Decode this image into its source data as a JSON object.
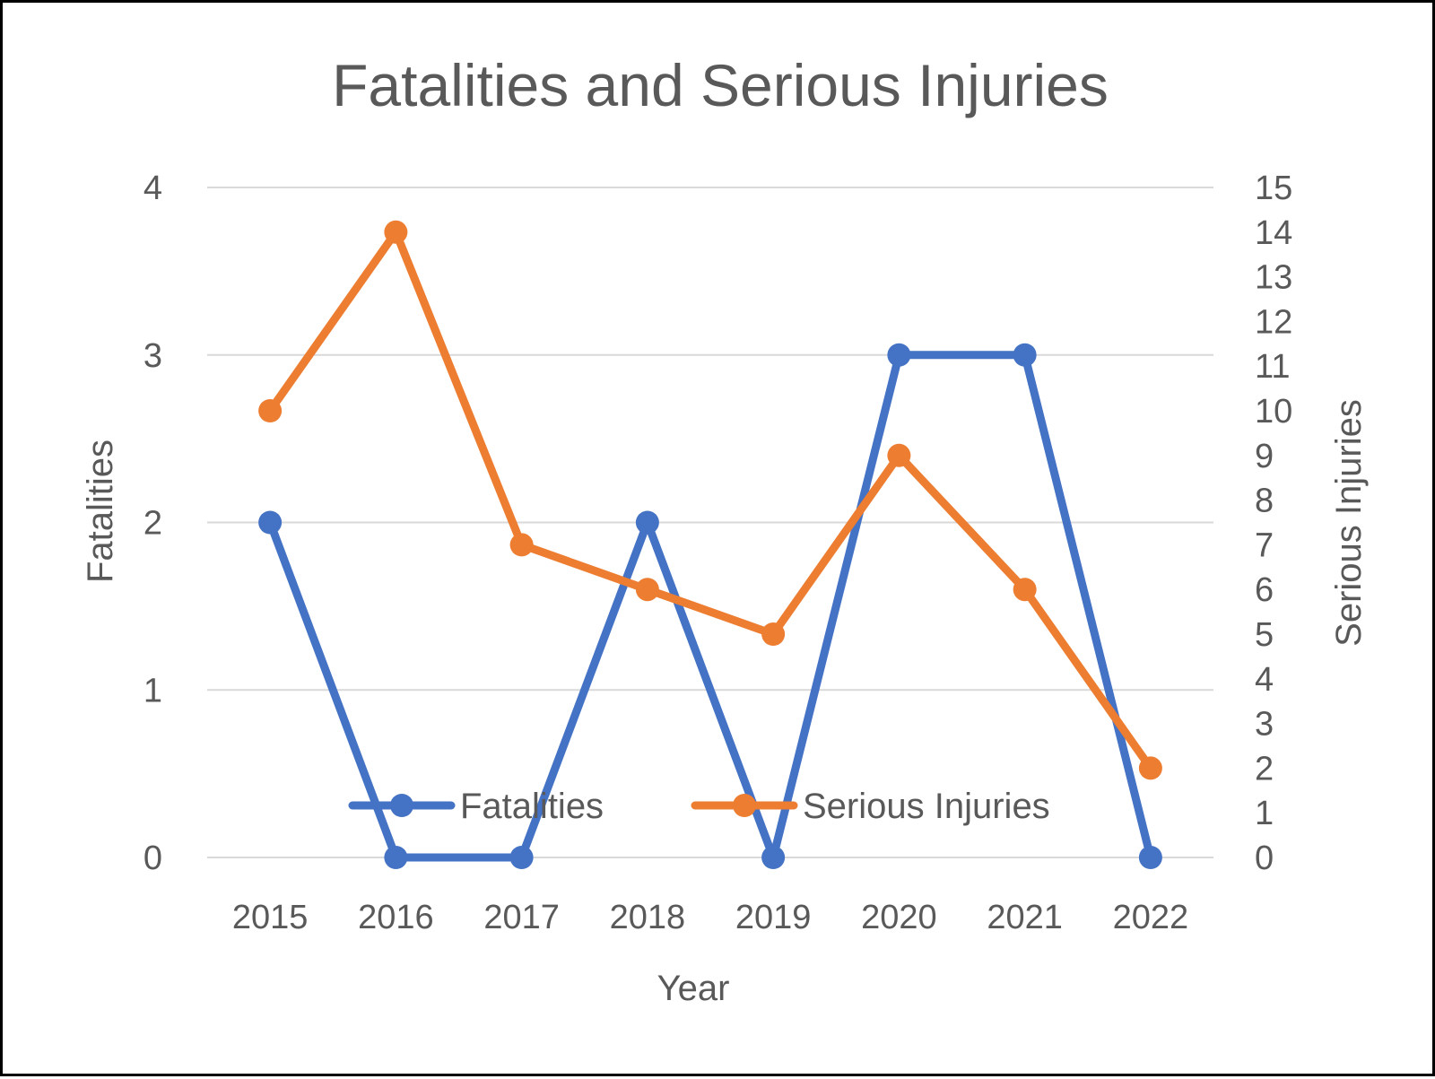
{
  "chart_data": {
    "type": "line",
    "title": "Fatalities and Serious Injuries",
    "xlabel": "Year",
    "ylabel": "Fatalities",
    "y2label": "Serious Injuries",
    "categories": [
      "2015",
      "2016",
      "2017",
      "2018",
      "2019",
      "2020",
      "2021",
      "2022"
    ],
    "ylim": [
      0,
      4
    ],
    "y2lim": [
      0,
      15
    ],
    "yticks": [
      "0",
      "1",
      "2",
      "3",
      "4"
    ],
    "y2ticks": [
      "0",
      "1",
      "2",
      "3",
      "4",
      "5",
      "6",
      "7",
      "8",
      "9",
      "10",
      "11",
      "12",
      "13",
      "14",
      "15"
    ],
    "grid": true,
    "legend": "bottom-inside",
    "series": [
      {
        "name": "Fatalities",
        "axis": "left",
        "color": "#4472c4",
        "values": [
          2,
          0,
          0,
          2,
          0,
          3,
          3,
          0
        ]
      },
      {
        "name": "Serious Injuries",
        "axis": "right",
        "color": "#ed7d31",
        "values": [
          10,
          14,
          7,
          6,
          5,
          9,
          6,
          2
        ]
      }
    ]
  }
}
